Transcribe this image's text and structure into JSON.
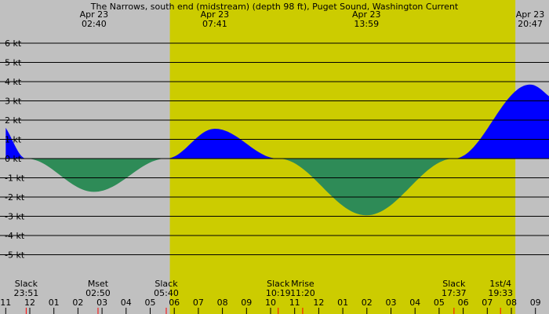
{
  "chart_data": {
    "type": "area",
    "title": "The Narrows, south end (midstream) (depth 98 ft), Puget Sound, Washington Current",
    "xlabel": "",
    "ylabel": "",
    "x_unit": "hour",
    "xlim": [
      23.0,
      33.1
    ],
    "ylim": [
      -6.3,
      6.8
    ],
    "grid": true,
    "y_ticks": [
      6,
      5,
      4,
      3,
      2,
      1,
      0,
      -1,
      -2,
      -3,
      -4,
      -5
    ],
    "y_tick_labels": [
      "6 kt",
      "5 kt",
      "4 kt",
      "3 kt",
      "2 kt",
      "1 kt",
      "0 kt",
      "-1 kt",
      "-2 kt",
      "-3 kt",
      "-4 kt",
      "-5 kt"
    ],
    "hour_ticks": [
      {
        "x": 23,
        "label": "11"
      },
      {
        "x": 24,
        "label": "12"
      },
      {
        "x": 25,
        "label": "01"
      },
      {
        "x": 26,
        "label": "02"
      },
      {
        "x": 27,
        "label": "03"
      },
      {
        "x": 28,
        "label": "04"
      },
      {
        "x": 29,
        "label": "05"
      },
      {
        "x": 30,
        "label": "06"
      },
      {
        "x": 31,
        "label": "07"
      },
      {
        "x": 32,
        "label": "08"
      },
      {
        "x": 33,
        "label": "09"
      },
      {
        "x": 34,
        "label": "10"
      },
      {
        "x": 35,
        "label": "11"
      },
      {
        "x": 36,
        "label": "12"
      },
      {
        "x": 37,
        "label": "01"
      },
      {
        "x": 38,
        "label": "02"
      },
      {
        "x": 39,
        "label": "03"
      },
      {
        "x": 40,
        "label": "04"
      },
      {
        "x": 41,
        "label": "05"
      },
      {
        "x": 42,
        "label": "06"
      },
      {
        "x": 43,
        "label": "07"
      },
      {
        "x": 44,
        "label": "08"
      },
      {
        "x": 45,
        "label": "09"
      }
    ],
    "daylight": {
      "start": 29.817,
      "end": 44.167
    },
    "extremes": [
      {
        "date": "Apr 23",
        "time": "02:40",
        "x": 26.667,
        "y": -1.73
      },
      {
        "date": "Apr 23",
        "time": "07:41",
        "x": 31.683,
        "y": 1.55
      },
      {
        "date": "Apr 23",
        "time": "13:59",
        "x": 37.983,
        "y": -2.95
      },
      {
        "date": "Apr 23",
        "time": "20:47",
        "x": 44.783,
        "y": 3.85
      }
    ],
    "slack_times": [
      23.85,
      29.667,
      34.317,
      41.617
    ],
    "events": [
      {
        "label": "Slack",
        "time": "23:51",
        "x": 23.85
      },
      {
        "label": "Mset",
        "time": "02:50",
        "x": 26.833
      },
      {
        "label": "Slack",
        "time": "05:40",
        "x": 29.667
      },
      {
        "label": "Slack",
        "time": "10:19",
        "x": 34.317
      },
      {
        "label": "Mrise",
        "time": "11:20",
        "x": 35.333
      },
      {
        "label": "Slack",
        "time": "17:37",
        "x": 41.617
      },
      {
        "label": "1st/4",
        "time": "19:33",
        "x": 43.55
      }
    ],
    "colors": {
      "night": "#c0c0c0",
      "day": "#cccc00",
      "flood": "#0000ff",
      "ebb": "#2e8b57",
      "gridline": "#000000",
      "event_marker": "#ff0000"
    }
  }
}
